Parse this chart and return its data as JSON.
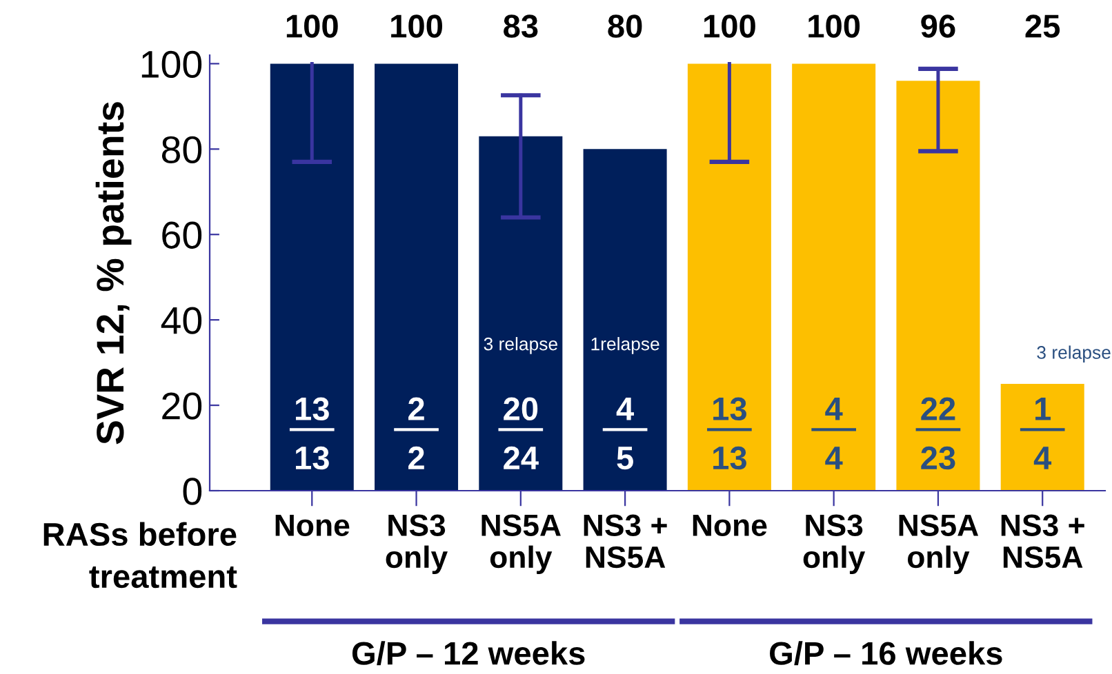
{
  "chart_data": {
    "type": "bar",
    "ylabel": "SVR 12, % patients",
    "categories": [
      "None",
      "NS3\nonly",
      "NS5A\nonly",
      "NS3 +\nNS5A",
      "None",
      "NS3\nonly",
      "NS5A\nonly",
      "NS3 +\nNS5A"
    ],
    "values": [
      100,
      100,
      83,
      80,
      100,
      100,
      96,
      25
    ],
    "colors": [
      "#001f5b",
      "#001f5b",
      "#001f5b",
      "#001f5b",
      "#fdbf00",
      "#fdbf00",
      "#fdbf00",
      "#fdbf00"
    ],
    "errors": [
      [
        77,
        100
      ],
      null,
      [
        64,
        92.6
      ],
      null,
      [
        77,
        100
      ],
      null,
      [
        79.5,
        98.8
      ],
      null
    ],
    "ylim": [
      0,
      102
    ],
    "yticks": [
      0,
      20,
      40,
      60,
      80,
      100
    ],
    "grid": false,
    "annotations": [
      "100",
      "100",
      "83",
      "80",
      "100",
      "100",
      "96",
      "25",
      "13\n13",
      "2\n2",
      "20\n24",
      "4\n5",
      "13\n13",
      "4\n4",
      "22\n23",
      "1\n4",
      "3 relapse",
      "1relapse",
      "3 relapse",
      "RASs before\ntreatment",
      "G/P – 12 weeks",
      "G/P – 16 weeks"
    ]
  }
}
